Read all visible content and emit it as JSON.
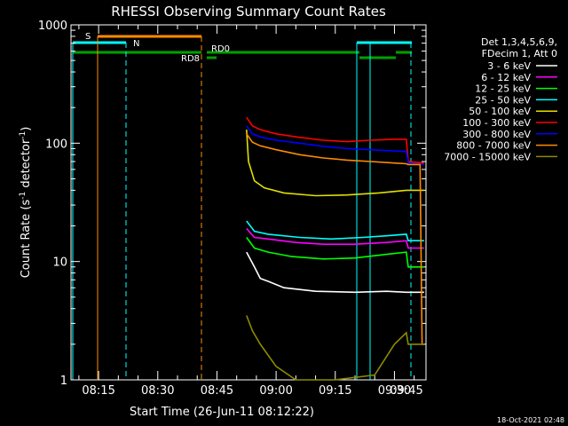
{
  "chart_data": {
    "type": "line",
    "title": "RHESSI Observing Summary Count Rates",
    "xlabel": "Start Time (26-Jun-11 08:12:22)",
    "ylabel": "Count Rate (s-1 detector-1)",
    "ylabel_parts": {
      "main": "Count Rate (s",
      "sup1": "-1",
      "mid": " detector",
      "sup2": "-1",
      "end": ")"
    },
    "yscale": "log",
    "ylim": [
      1,
      1000
    ],
    "xlim_minutes": [
      8.0,
      98.0
    ],
    "y_ticks": [
      {
        "value": 1,
        "label": "1"
      },
      {
        "value": 10,
        "label": "10"
      },
      {
        "value": 100,
        "label": "100"
      },
      {
        "value": 1000,
        "label": "1000"
      }
    ],
    "x_ticks": [
      {
        "minutes": 15,
        "label": "08:15"
      },
      {
        "minutes": 30,
        "label": "08:30"
      },
      {
        "minutes": 45,
        "label": "08:45"
      },
      {
        "minutes": 60,
        "label": "09:00"
      },
      {
        "minutes": 75,
        "label": "09:15"
      },
      {
        "minutes": 90,
        "label": "09:30"
      },
      {
        "minutes": 105,
        "label": "09:45"
      }
    ],
    "legend_header": [
      "Det 1,3,4,5,6,9,",
      "FDecim 1, Att 0"
    ],
    "series": [
      {
        "name": "3 - 6 keV",
        "color": "#ffffff",
        "data": [
          [
            52.5,
            12
          ],
          [
            54.5,
            9
          ],
          [
            56,
            7.2
          ],
          [
            58,
            6.8
          ],
          [
            62,
            6.0
          ],
          [
            70,
            5.6
          ],
          [
            80,
            5.5
          ],
          [
            88,
            5.6
          ],
          [
            93.0,
            5.5
          ],
          [
            93.5,
            5.5
          ],
          [
            97.5,
            5.5
          ]
        ]
      },
      {
        "name": "6 - 12 keV",
        "color": "#ff00ff",
        "data": [
          [
            52.5,
            19
          ],
          [
            54.5,
            16
          ],
          [
            58,
            15.5
          ],
          [
            65,
            14.5
          ],
          [
            72,
            14.0
          ],
          [
            80,
            14.0
          ],
          [
            88,
            14.5
          ],
          [
            93.0,
            15.0
          ],
          [
            93.5,
            13
          ],
          [
            97.5,
            13
          ]
        ]
      },
      {
        "name": "12 - 25 keV",
        "color": "#00ff00",
        "data": [
          [
            52.5,
            16
          ],
          [
            54.5,
            13
          ],
          [
            58,
            12
          ],
          [
            64,
            11
          ],
          [
            72,
            10.5
          ],
          [
            80,
            10.7
          ],
          [
            88,
            11.5
          ],
          [
            93.0,
            12.0
          ],
          [
            93.5,
            9
          ],
          [
            97.5,
            9
          ]
        ]
      },
      {
        "name": "25 - 50 keV",
        "color": "#00ffff",
        "data": [
          [
            52.5,
            22
          ],
          [
            54.5,
            18
          ],
          [
            58,
            17
          ],
          [
            66,
            16
          ],
          [
            74,
            15.5
          ],
          [
            82,
            16
          ],
          [
            88,
            16.5
          ],
          [
            93.0,
            17.0
          ],
          [
            93.5,
            15
          ],
          [
            97.5,
            15
          ]
        ]
      },
      {
        "name": "50 - 100 keV",
        "color": "#e0e000",
        "data": [
          [
            52.5,
            130
          ],
          [
            53.0,
            70
          ],
          [
            54.5,
            48
          ],
          [
            57,
            42
          ],
          [
            62,
            38
          ],
          [
            70,
            36
          ],
          [
            78,
            36.5
          ],
          [
            86,
            38
          ],
          [
            93.0,
            40
          ],
          [
            93.5,
            40
          ],
          [
            97.5,
            40
          ]
        ]
      },
      {
        "name": "100 - 300 keV",
        "color": "#ff0000",
        "data": [
          [
            52.5,
            165
          ],
          [
            54,
            140
          ],
          [
            56,
            130
          ],
          [
            60,
            120
          ],
          [
            66,
            112
          ],
          [
            72,
            106
          ],
          [
            78,
            103
          ],
          [
            84,
            106
          ],
          [
            90,
            108
          ],
          [
            93.0,
            108
          ],
          [
            93.5,
            70
          ],
          [
            97.5,
            68
          ]
        ]
      },
      {
        "name": "300 - 800 keV",
        "color": "#0000ff",
        "data": [
          [
            52.5,
            140
          ],
          [
            54,
            120
          ],
          [
            56,
            113
          ],
          [
            60,
            106
          ],
          [
            66,
            100
          ],
          [
            72,
            94
          ],
          [
            78,
            90
          ],
          [
            84,
            88
          ],
          [
            90,
            86
          ],
          [
            93.0,
            85
          ],
          [
            93.5,
            68
          ],
          [
            97.5,
            66
          ]
        ]
      },
      {
        "name": "800 - 7000 keV",
        "color": "#ff8c00",
        "data": [
          [
            52.5,
            120
          ],
          [
            54,
            102
          ],
          [
            56,
            95
          ],
          [
            60,
            88
          ],
          [
            66,
            80
          ],
          [
            72,
            75
          ],
          [
            78,
            72
          ],
          [
            84,
            70
          ],
          [
            90,
            68
          ],
          [
            93.0,
            67
          ],
          [
            93.5,
            66
          ],
          [
            96.5,
            66
          ],
          [
            97.0,
            2.0
          ],
          [
            97.5,
            2.0
          ]
        ]
      },
      {
        "name": "7000 - 15000 keV",
        "color": "#8b8b00",
        "data": [
          [
            52.5,
            3.5
          ],
          [
            54,
            2.6
          ],
          [
            56,
            2.0
          ],
          [
            60,
            1.3
          ],
          [
            65,
            1.0
          ],
          [
            75,
            1.0
          ],
          [
            85,
            1.1
          ],
          [
            90,
            2.0
          ],
          [
            93.0,
            2.5
          ],
          [
            93.5,
            2.0
          ],
          [
            97.5,
            2.0
          ]
        ]
      }
    ],
    "annotations": [
      {
        "label": "S",
        "color": "#ff8c00"
      },
      {
        "label": "N",
        "color": "#00ffff"
      },
      {
        "label": "RD0",
        "color": "#00a000"
      },
      {
        "label": "RD8",
        "color": "#00a000"
      }
    ],
    "footer_stamp": "18-Oct-2021 02:48"
  }
}
